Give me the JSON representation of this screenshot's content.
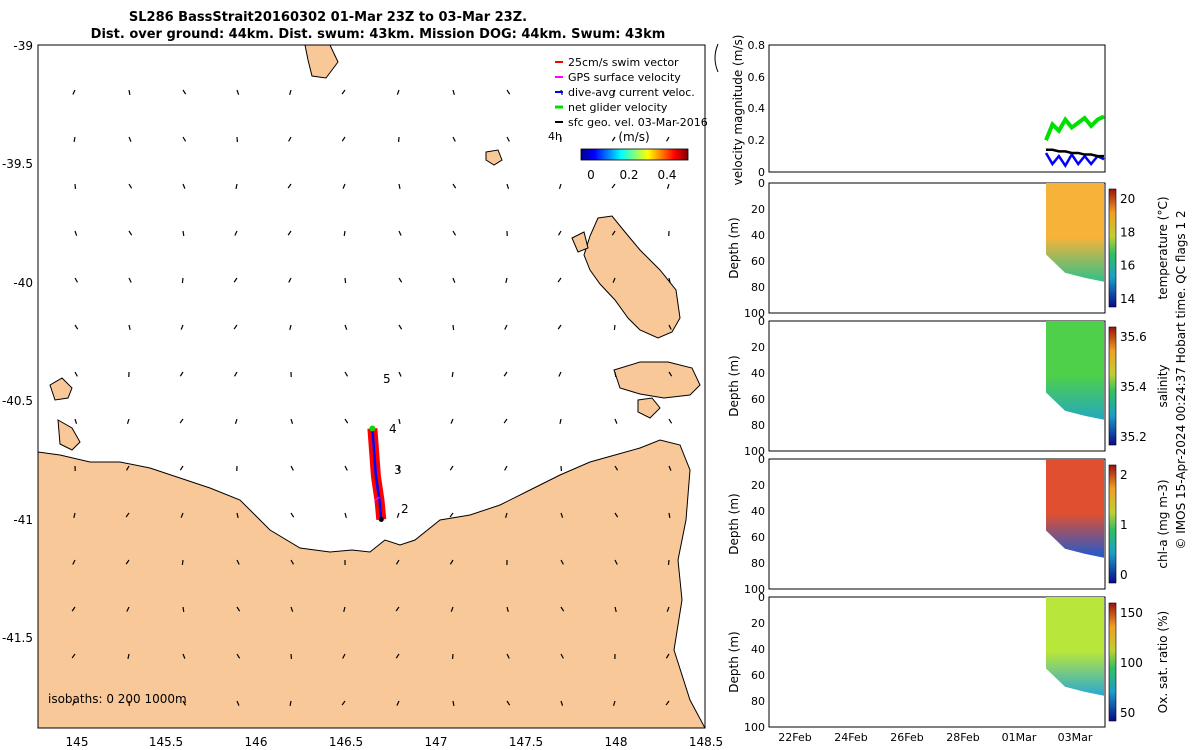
{
  "title": {
    "line1": "SL286 BassStrait20160302 01-Mar 23Z to 03-Mar 23Z.",
    "line2": "Dist. over ground: 44km. Dist. swum: 43km. Mission DOG: 44km. Swum: 43km"
  },
  "colors": {
    "land": "#f9c898",
    "coast": "#000000",
    "swim_vector": "#ff0000",
    "gps_velocity": "#ff00ff",
    "dive_avg_current": "#0000ff",
    "net_glider": "#00e000",
    "sfc_geo": "#000000"
  },
  "map": {
    "legend": [
      {
        "label": "25cm/s swim vector",
        "color_key": "swim_vector"
      },
      {
        "label": "GPS surface velocity",
        "color_key": "gps_velocity"
      },
      {
        "label": "dive-avg current veloc.",
        "color_key": "dive_avg_current"
      },
      {
        "label": "net glider velocity",
        "color_key": "net_glider"
      },
      {
        "label": "sfc geo. vel. 03-Mar-2016",
        "color_key": "sfc_geo"
      }
    ],
    "legend_extra": "4h",
    "colorbar_title": "(m/s)",
    "colorbar_ticks": [
      "0",
      "0.2",
      "0.4"
    ],
    "isobaths_label": "isobaths: 0   200  1000m",
    "day_markers": [
      "5",
      "4",
      "3",
      "2"
    ]
  },
  "copyright": "© IMOS 15-Apr-2024 00:24:37 Hobart time. QC flags 1  2",
  "chart_data": [
    {
      "type": "scatter",
      "name": "track-map",
      "xlim": [
        144.8,
        148.55
      ],
      "ylim": [
        -41.85,
        -39.0
      ],
      "x_ticks": [
        "145",
        "145.5",
        "146",
        "146.5",
        "147",
        "147.5",
        "148",
        "148.5"
      ],
      "y_ticks": [
        "-39",
        "-39.5",
        "-40",
        "-40.5",
        "-41",
        "-41.5"
      ],
      "glider_track": {
        "x": [
          146.68,
          146.69,
          146.7,
          146.72,
          146.73
        ],
        "y": [
          -40.6,
          -40.7,
          -40.8,
          -40.9,
          -40.98
        ]
      }
    },
    {
      "type": "line",
      "name": "velocity-panel",
      "ylabel": "velocity magnitude (m/s)",
      "ylim": [
        0,
        0.8
      ],
      "y_ticks": [
        "0",
        "0.2",
        "0.4",
        "0.6",
        "0.8"
      ],
      "x_ticks": [
        "22Feb",
        "24Feb",
        "26Feb",
        "28Feb",
        "01Mar",
        "03Mar"
      ],
      "series": [
        {
          "color_key": "net_glider",
          "values": [
            0.2,
            0.3,
            0.26,
            0.33,
            0.28,
            0.31,
            0.34,
            0.29,
            0.33,
            0.35
          ]
        },
        {
          "color_key": "dive_avg_current",
          "values": [
            0.12,
            0.05,
            0.1,
            0.04,
            0.11,
            0.05,
            0.1,
            0.05,
            0.1,
            0.08
          ]
        },
        {
          "color_key": "sfc_geo",
          "values": [
            0.14,
            0.14,
            0.13,
            0.13,
            0.12,
            0.12,
            0.11,
            0.11,
            0.1,
            0.1
          ]
        }
      ]
    },
    {
      "type": "heatmap",
      "name": "temperature-panel",
      "ylabel": "Depth (m)",
      "cblabel": "temperature (°C)",
      "y_ticks": [
        "0",
        "20",
        "40",
        "60",
        "80",
        "100"
      ],
      "cb_ticks": [
        "14",
        "16",
        "18",
        "20"
      ],
      "ylim": [
        100,
        0
      ]
    },
    {
      "type": "heatmap",
      "name": "salinity-panel",
      "ylabel": "Depth (m)",
      "cblabel": "salinity",
      "y_ticks": [
        "0",
        "20",
        "40",
        "60",
        "80",
        "100"
      ],
      "cb_ticks": [
        "35.2",
        "35.4",
        "35.6"
      ],
      "ylim": [
        100,
        0
      ]
    },
    {
      "type": "heatmap",
      "name": "chla-panel",
      "ylabel": "Depth (m)",
      "cblabel": "chl-a (mg m-3)",
      "y_ticks": [
        "0",
        "20",
        "40",
        "60",
        "80",
        "100"
      ],
      "cb_ticks": [
        "0",
        "1",
        "2"
      ],
      "ylim": [
        100,
        0
      ]
    },
    {
      "type": "heatmap",
      "name": "oxygen-panel",
      "ylabel": "Depth (m)",
      "cblabel": "Ox. sat. ratio (%)",
      "y_ticks": [
        "0",
        "20",
        "40",
        "60",
        "80",
        "100"
      ],
      "cb_ticks": [
        "50",
        "100",
        "150"
      ],
      "ylim": [
        100,
        0
      ],
      "x_ticks": [
        "22Feb",
        "24Feb",
        "26Feb",
        "28Feb",
        "01Mar",
        "03Mar"
      ]
    }
  ]
}
